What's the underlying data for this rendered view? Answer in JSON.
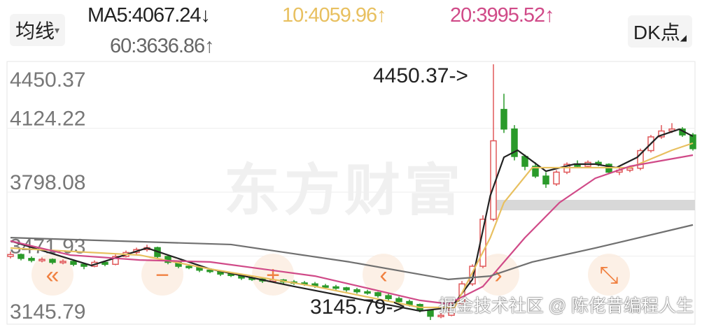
{
  "header": {
    "ma_selector": "均线",
    "ma_arrow": "▾",
    "dk_button": "DK点",
    "dk_arrow": "◢",
    "ma5": "MA5:4067.24↓",
    "ma10": "10:4059.96↑",
    "ma20": "20:3995.52↑",
    "ma60": "60:3636.86↑"
  },
  "colors": {
    "up": "#e0585a",
    "down": "#2a9a2a",
    "ma5": "#222222",
    "ma10": "#e8c060",
    "ma20": "#d04a88",
    "ma60": "#707070",
    "nav": "#f08040"
  },
  "nav_icons": [
    "double-left-icon",
    "zoom-out-icon",
    "zoom-in-icon",
    "prev-icon",
    "next-icon",
    "fullscreen-icon"
  ],
  "watermark": "东方财富",
  "credit": "掘金技术社区 @ 陈佬昔编程人生",
  "chart_data": {
    "type": "candlestick",
    "y_ticks": [
      "4450.37",
      "4124.22",
      "3798.08",
      "3471.93",
      "3145.79"
    ],
    "ylim": [
      3145.79,
      4450.37
    ],
    "annotations": {
      "high": "4450.37->",
      "low": "3145.79->"
    },
    "candles_ohlc": [
      [
        3470,
        3495,
        3460,
        3480
      ],
      [
        3480,
        3485,
        3450,
        3460
      ],
      [
        3460,
        3470,
        3440,
        3450
      ],
      [
        3450,
        3465,
        3440,
        3455
      ],
      [
        3455,
        3460,
        3430,
        3440
      ],
      [
        3440,
        3455,
        3430,
        3445
      ],
      [
        3445,
        3450,
        3420,
        3430
      ],
      [
        3430,
        3435,
        3405,
        3420
      ],
      [
        3420,
        3450,
        3415,
        3440
      ],
      [
        3440,
        3445,
        3420,
        3430
      ],
      [
        3430,
        3480,
        3425,
        3470
      ],
      [
        3470,
        3500,
        3465,
        3490
      ],
      [
        3490,
        3515,
        3480,
        3505
      ],
      [
        3505,
        3530,
        3495,
        3515
      ],
      [
        3515,
        3520,
        3460,
        3470
      ],
      [
        3470,
        3475,
        3430,
        3440
      ],
      [
        3440,
        3445,
        3410,
        3420
      ],
      [
        3420,
        3430,
        3405,
        3415
      ],
      [
        3415,
        3420,
        3390,
        3400
      ],
      [
        3400,
        3410,
        3385,
        3395
      ],
      [
        3395,
        3400,
        3370,
        3380
      ],
      [
        3380,
        3390,
        3365,
        3375
      ],
      [
        3375,
        3380,
        3350,
        3360
      ],
      [
        3360,
        3370,
        3345,
        3355
      ],
      [
        3355,
        3360,
        3335,
        3345
      ],
      [
        3345,
        3365,
        3340,
        3350
      ],
      [
        3350,
        3355,
        3330,
        3340
      ],
      [
        3340,
        3350,
        3325,
        3335
      ],
      [
        3335,
        3345,
        3320,
        3330
      ],
      [
        3330,
        3340,
        3310,
        3320
      ],
      [
        3320,
        3330,
        3305,
        3315
      ],
      [
        3315,
        3325,
        3300,
        3310
      ],
      [
        3310,
        3315,
        3290,
        3300
      ],
      [
        3300,
        3310,
        3280,
        3290
      ],
      [
        3290,
        3300,
        3275,
        3285
      ],
      [
        3285,
        3290,
        3260,
        3270
      ],
      [
        3270,
        3280,
        3245,
        3255
      ],
      [
        3255,
        3265,
        3230,
        3240
      ],
      [
        3240,
        3250,
        3215,
        3225
      ],
      [
        3225,
        3230,
        3185,
        3195
      ],
      [
        3195,
        3200,
        3145.79,
        3165
      ],
      [
        3165,
        3185,
        3155,
        3170
      ],
      [
        3170,
        3240,
        3165,
        3230
      ],
      [
        3230,
        3345,
        3225,
        3330
      ],
      [
        3330,
        3430,
        3320,
        3420
      ],
      [
        3420,
        3680,
        3410,
        3660
      ],
      [
        3660,
        4450.37,
        3650,
        4060
      ],
      [
        4220,
        4300,
        4100,
        4120
      ],
      [
        4120,
        4140,
        3960,
        3980
      ],
      [
        3980,
        3990,
        3910,
        3930
      ],
      [
        3930,
        3950,
        3870,
        3880
      ],
      [
        3880,
        3900,
        3820,
        3840
      ],
      [
        3840,
        3910,
        3830,
        3900
      ],
      [
        3900,
        3950,
        3890,
        3940
      ],
      [
        3940,
        3960,
        3920,
        3930
      ],
      [
        3930,
        3960,
        3920,
        3950
      ],
      [
        3950,
        3960,
        3930,
        3940
      ],
      [
        3940,
        3945,
        3890,
        3900
      ],
      [
        3900,
        3920,
        3885,
        3910
      ],
      [
        3910,
        3930,
        3900,
        3920
      ],
      [
        3920,
        4020,
        3910,
        4010
      ],
      [
        4010,
        4090,
        4000,
        4080
      ],
      [
        4080,
        4140,
        4070,
        4110
      ],
      [
        4110,
        4150,
        4100,
        4120
      ],
      [
        4120,
        4130,
        4080,
        4090
      ],
      [
        4090,
        4100,
        4010,
        4020
      ]
    ],
    "series": [
      {
        "name": "MA5",
        "points": [
          [
            0,
            3549
          ],
          [
            7.7,
            3424
          ],
          [
            13,
            3513
          ],
          [
            19,
            3406
          ],
          [
            27,
            3317
          ],
          [
            39,
            3192
          ],
          [
            42,
            3210
          ],
          [
            44,
            3353
          ],
          [
            45.7,
            3780
          ],
          [
            47,
            3976
          ],
          [
            48.3,
            4012
          ],
          [
            51,
            3905
          ],
          [
            53.7,
            3941
          ],
          [
            55.7,
            3941
          ],
          [
            57.7,
            3923
          ],
          [
            59.7,
            3976
          ],
          [
            61.7,
            4083
          ],
          [
            63.7,
            4119
          ],
          [
            65,
            4083
          ]
        ]
      },
      {
        "name": "10",
        "points": [
          [
            0,
            3513
          ],
          [
            12.3,
            3477
          ],
          [
            19,
            3406
          ],
          [
            29,
            3317
          ],
          [
            39,
            3210
          ],
          [
            42.3,
            3210
          ],
          [
            45.7,
            3566
          ],
          [
            47,
            3745
          ],
          [
            49.7,
            3923
          ],
          [
            52.3,
            3923
          ],
          [
            59,
            3923
          ],
          [
            63,
            4012
          ],
          [
            65,
            4048
          ]
        ]
      },
      {
        "name": "20",
        "points": [
          [
            0,
            3549
          ],
          [
            5.7,
            3477
          ],
          [
            12.3,
            3452
          ],
          [
            19,
            3442
          ],
          [
            29,
            3370
          ],
          [
            39,
            3246
          ],
          [
            41.7,
            3228
          ],
          [
            45,
            3317
          ],
          [
            49,
            3566
          ],
          [
            52.3,
            3745
          ],
          [
            55.7,
            3869
          ],
          [
            59,
            3930
          ],
          [
            65,
            3987
          ]
        ]
      },
      {
        "name": "60",
        "points": [
          [
            0,
            3566
          ],
          [
            21,
            3531
          ],
          [
            32.3,
            3442
          ],
          [
            41.7,
            3353
          ],
          [
            45.7,
            3370
          ],
          [
            49.7,
            3442
          ],
          [
            55.7,
            3513
          ],
          [
            65,
            3631
          ]
        ]
      }
    ]
  }
}
